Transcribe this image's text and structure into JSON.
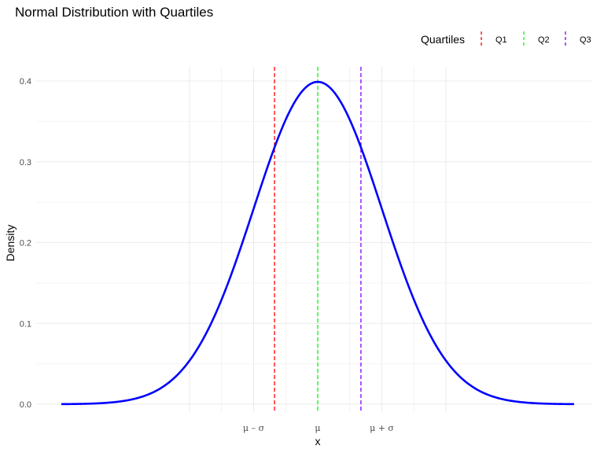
{
  "chart_data": {
    "type": "line",
    "title": "Normal Distribution with Quartiles",
    "xlabel": "x",
    "ylabel": "Density",
    "x_range": [
      -4,
      4
    ],
    "ylim": [
      0,
      0.4
    ],
    "y_ticks": [
      "0.0",
      "0.1",
      "0.2",
      "0.3",
      "0.4"
    ],
    "x_ticks": [
      {
        "value": -1,
        "label": "μ – σ"
      },
      {
        "value": 0,
        "label": "μ"
      },
      {
        "value": 1,
        "label": "μ + σ"
      }
    ],
    "series": [
      {
        "distribution": "normal",
        "mean": 0,
        "sd": 1,
        "color": "#0000ff"
      }
    ],
    "reference_lines": [
      {
        "name": "Q1",
        "x": -0.674,
        "color": "#ff0000",
        "style": "dashed"
      },
      {
        "name": "Q2",
        "x": 0,
        "color": "#00ff00",
        "style": "dashed"
      },
      {
        "name": "Q3",
        "x": 0.674,
        "color": "#8000ff",
        "style": "dashed"
      }
    ],
    "legend": {
      "title": "Quartiles",
      "position": "top-right"
    },
    "grid": true
  }
}
